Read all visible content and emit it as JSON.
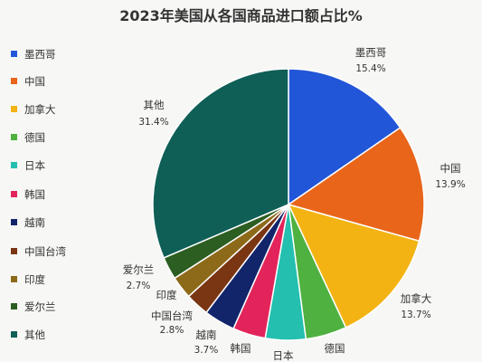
{
  "chart_data": {
    "type": "pie",
    "title": "2023年美国从各国商品进口额占比%",
    "legend_position": "left",
    "slices": [
      {
        "name": "墨西哥",
        "value": 15.4,
        "label": "15.4%",
        "color": "#2156d8"
      },
      {
        "name": "中国",
        "value": 13.9,
        "label": "13.9%",
        "color": "#e8651a"
      },
      {
        "name": "加拿大",
        "value": 13.7,
        "label": "13.7%",
        "color": "#f3b312"
      },
      {
        "name": "德国",
        "value": 4.9,
        "label": "",
        "color": "#4fb140"
      },
      {
        "name": "日本",
        "value": 4.8,
        "label": "",
        "color": "#24bfae"
      },
      {
        "name": "韩国",
        "value": 3.9,
        "label": "",
        "color": "#e2245a"
      },
      {
        "name": "越南",
        "value": 3.7,
        "label": "3.7%",
        "color": "#12256b"
      },
      {
        "name": "中国台湾",
        "value": 2.8,
        "label": "2.8%",
        "color": "#7a3513"
      },
      {
        "name": "印度",
        "value": 2.7,
        "label": "",
        "color": "#8d6a1a"
      },
      {
        "name": "爱尔兰",
        "value": 2.7,
        "label": "2.7%",
        "color": "#2c5e22"
      },
      {
        "name": "其他",
        "value": 31.4,
        "label": "31.4%",
        "color": "#0f5f57"
      }
    ]
  }
}
